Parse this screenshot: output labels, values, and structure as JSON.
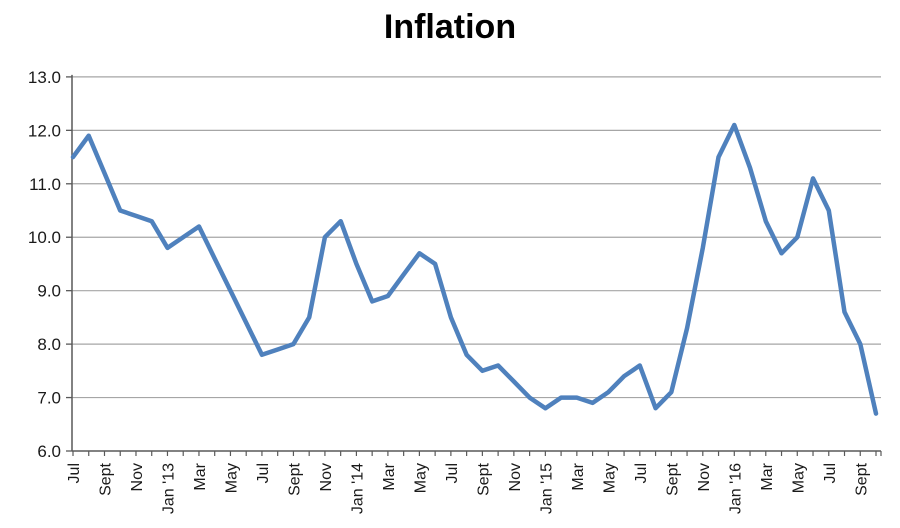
{
  "chart_data": {
    "type": "line",
    "title": "Inflation",
    "series_name": "Inflation",
    "months": [
      "Jul '12",
      "Aug '12",
      "Sep '12",
      "Oct '12",
      "Nov '12",
      "Dec '12",
      "Jan '13",
      "Feb '13",
      "Mar '13",
      "Apr '13",
      "May '13",
      "Jun '13",
      "Jul '13",
      "Aug '13",
      "Sep '13",
      "Oct '13",
      "Nov '13",
      "Dec '13",
      "Jan '14",
      "Feb '14",
      "Mar '14",
      "Apr '14",
      "May '14",
      "Jun '14",
      "Jul '14",
      "Aug '14",
      "Sep '14",
      "Oct '14",
      "Nov '14",
      "Dec '14",
      "Jan '15",
      "Feb '15",
      "Mar '15",
      "Apr '15",
      "May '15",
      "Jun '15",
      "Jul '15",
      "Aug '15",
      "Sep '15",
      "Oct '15",
      "Nov '15",
      "Dec '15",
      "Jan '16",
      "Feb '16",
      "Mar '16",
      "Apr '16",
      "May '16",
      "Jun '16",
      "Jul '16",
      "Aug '16",
      "Sep '16",
      "Oct '16"
    ],
    "values": [
      11.5,
      11.9,
      11.2,
      10.5,
      10.4,
      10.3,
      9.8,
      10.0,
      10.2,
      9.6,
      9.0,
      8.4,
      7.8,
      7.9,
      8.0,
      8.5,
      10.0,
      10.3,
      9.5,
      8.8,
      8.9,
      9.3,
      9.7,
      9.5,
      8.5,
      7.8,
      7.5,
      7.6,
      7.3,
      7.0,
      6.8,
      7.0,
      7.0,
      6.9,
      7.1,
      7.4,
      7.6,
      6.8,
      7.1,
      8.3,
      9.8,
      11.5,
      12.1,
      11.3,
      10.3,
      9.7,
      10.0,
      11.1,
      10.5,
      8.6,
      8.0,
      6.7
    ],
    "x_tick_labels": [
      "Jul",
      "Sept",
      "Nov",
      "Jan '13",
      "Mar",
      "May",
      "Jul",
      "Sept",
      "Nov",
      "Jan '14",
      "Mar",
      "May",
      "Jul",
      "Sept",
      "Nov",
      "Jan '15",
      "Mar",
      "May",
      "Jul",
      "Sept",
      "Nov",
      "Jan '16",
      "Mar",
      "May",
      "Jul",
      "Sept"
    ],
    "x_label_every_n_months": 2,
    "y_tick_labels": [
      "13.0",
      "12.0",
      "11.0",
      "10.0",
      "9.0",
      "8.0",
      "7.0",
      "6.0"
    ],
    "ylim": [
      6.0,
      13.0
    ],
    "xlabel": "",
    "ylabel": "",
    "grid": true,
    "legend": false,
    "line_color": "#4F81BD",
    "grid_color": "#A6A6A6",
    "axis_color": "#595959",
    "text_color": "#1a1a1a",
    "title_color": "#000000"
  }
}
